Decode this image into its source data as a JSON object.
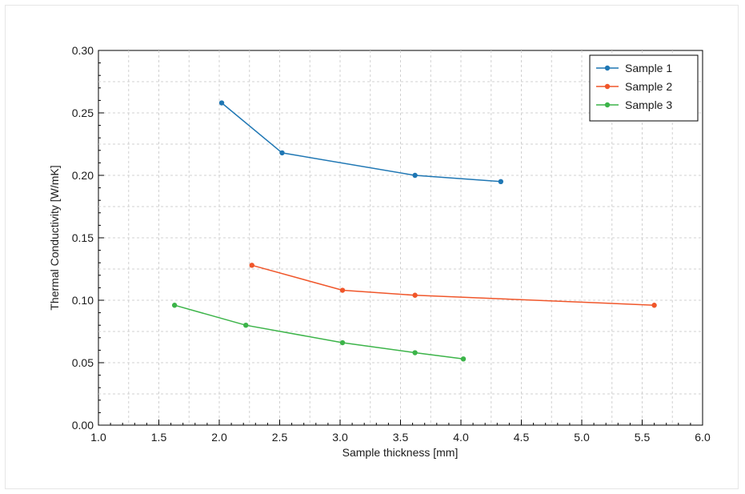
{
  "chart_data": {
    "type": "line",
    "xlabel": "Sample thickness [mm]",
    "ylabel": "Thermal Conductivity [W/mK]",
    "xlim": [
      1.0,
      6.0
    ],
    "ylim": [
      0.0,
      0.3
    ],
    "xticks": [
      "1.0",
      "1.5",
      "2.0",
      "2.5",
      "3.0",
      "3.5",
      "4.0",
      "4.5",
      "5.0",
      "5.5",
      "6.0"
    ],
    "yticks": [
      "0.00",
      "0.05",
      "0.10",
      "0.15",
      "0.20",
      "0.25",
      "0.30"
    ],
    "x_tick_values": [
      1.0,
      1.5,
      2.0,
      2.5,
      3.0,
      3.5,
      4.0,
      4.5,
      5.0,
      5.5,
      6.0
    ],
    "y_tick_values": [
      0.0,
      0.05,
      0.1,
      0.15,
      0.2,
      0.25,
      0.3
    ],
    "grid": true,
    "legend_position": "top-right",
    "series": [
      {
        "name": "Sample 1",
        "color": "#1f77b4",
        "x": [
          2.02,
          2.52,
          3.62,
          4.33
        ],
        "y": [
          0.258,
          0.218,
          0.2,
          0.195
        ]
      },
      {
        "name": "Sample 2",
        "color": "#f0562a",
        "x": [
          2.27,
          3.02,
          3.62,
          5.6
        ],
        "y": [
          0.128,
          0.108,
          0.104,
          0.096
        ]
      },
      {
        "name": "Sample 3",
        "color": "#3cb449",
        "x": [
          1.63,
          2.22,
          3.02,
          3.62,
          4.02
        ],
        "y": [
          0.096,
          0.08,
          0.066,
          0.058,
          0.053
        ]
      }
    ]
  }
}
